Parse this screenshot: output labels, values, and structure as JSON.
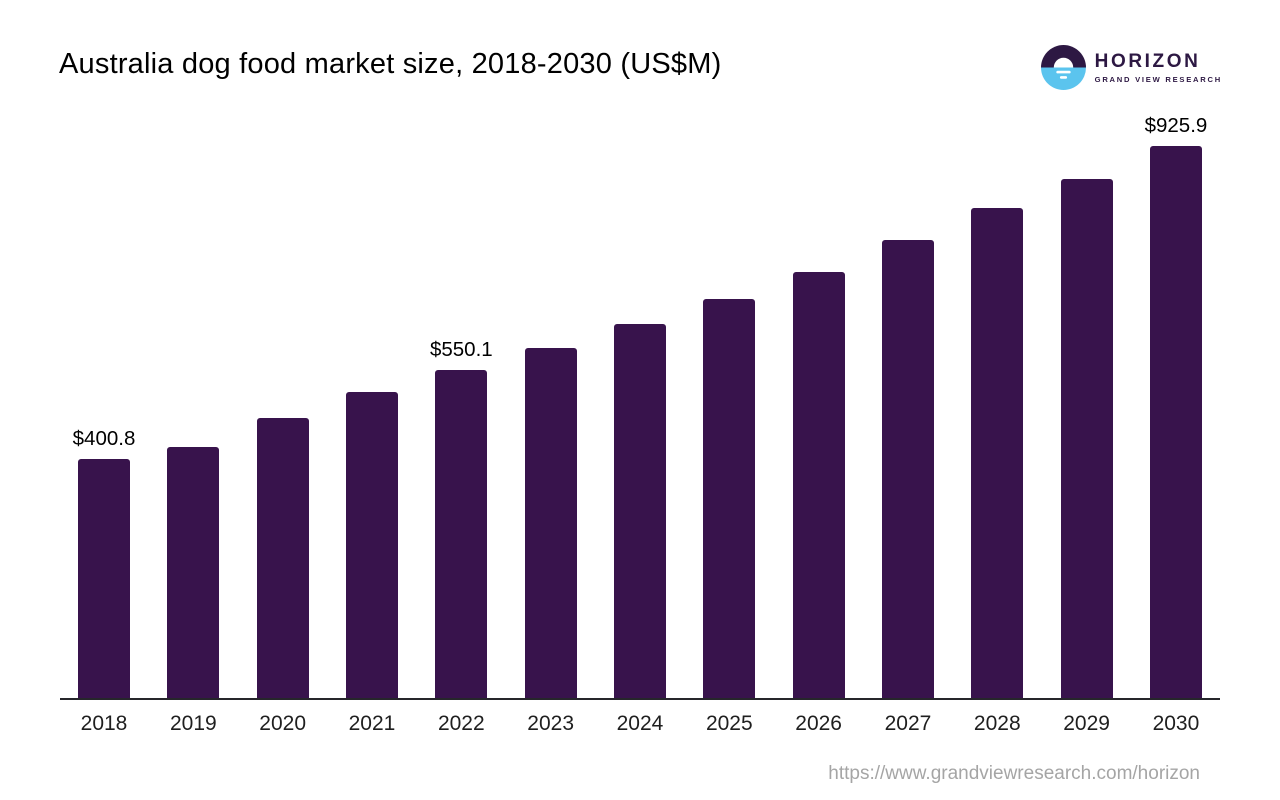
{
  "header": {
    "title": "Australia dog food market size, 2018-2030 (US$M)",
    "logo": {
      "name": "HORIZON",
      "subtitle": "GRAND VIEW RESEARCH"
    }
  },
  "footer": {
    "source_url": "https://www.grandviewresearch.com/horizon"
  },
  "colors": {
    "bar": "#38134c",
    "logo_purple": "#2d1843",
    "logo_blue": "#5bc4ee",
    "axis": "#26262b",
    "year_label": "#1f1f1f",
    "value_label": "#000000",
    "url_gray": "#a5a5a5"
  },
  "chart_data": {
    "type": "bar",
    "title": "Australia dog food market size, 2018-2030 (US$M)",
    "unit": "US$M",
    "categories": [
      "2018",
      "2019",
      "2020",
      "2021",
      "2022",
      "2023",
      "2024",
      "2025",
      "2026",
      "2027",
      "2028",
      "2029",
      "2030"
    ],
    "values": [
      400.8,
      421,
      470,
      513,
      550.1,
      587,
      627,
      669,
      714,
      768,
      822,
      870,
      925.9
    ],
    "value_labels": {
      "2018": "$400.8",
      "2022": "$550.1",
      "2030": "$925.9"
    },
    "xlabel": "",
    "ylabel": "",
    "ylim": [
      0,
      960
    ],
    "grid": false,
    "legend": false,
    "layout_hints": "y-axis hidden, baseline axis only, data labels above first bar, 2022 bar and last bar"
  }
}
